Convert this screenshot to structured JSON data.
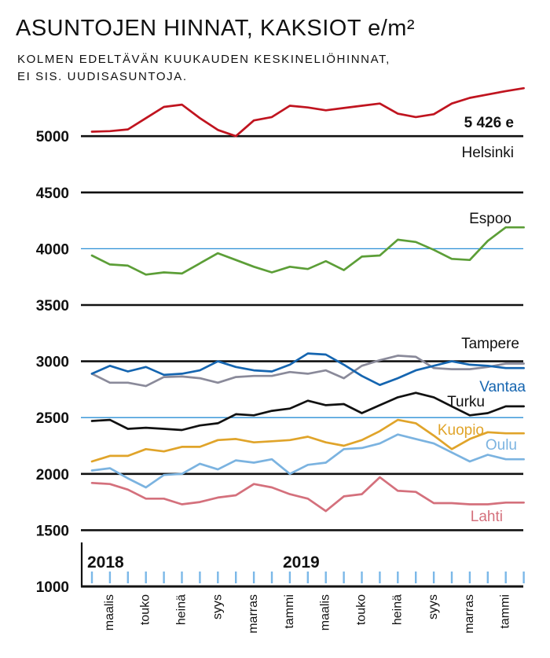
{
  "header": {
    "title": "ASUNTOJEN HINNAT, KAKSIOT e/m²",
    "subtitle_line1": "KOLMEN EDELTÄVÄN KUUKAUDEN KESKINELIÖHINNAT,",
    "subtitle_line2": "EI SIS. UUDISASUNTOJA."
  },
  "chart_data": {
    "type": "line",
    "title": "ASUNTOJEN HINNAT, KAKSIOT e/m²",
    "ylim": [
      1000,
      5500
    ],
    "yticks": [
      1000,
      1500,
      2000,
      2500,
      3000,
      3500,
      4000,
      4500,
      5000
    ],
    "ytick_labels": [
      "1000",
      "1500",
      "2000",
      "2500",
      "3000",
      "3500",
      "4000",
      "4500",
      "5000"
    ],
    "month_labels": [
      "maalis",
      "touko",
      "heinä",
      "syys",
      "marras",
      "tammi",
      "maalis",
      "touko",
      "heinä",
      "syys",
      "marras",
      "tammi"
    ],
    "year_labels": [
      "2018",
      "2019"
    ],
    "x": [
      "2018-01",
      "2018-02",
      "2018-03",
      "2018-04",
      "2018-05",
      "2018-06",
      "2018-07",
      "2018-08",
      "2018-09",
      "2018-10",
      "2018-11",
      "2018-12",
      "2019-01",
      "2019-02",
      "2019-03",
      "2019-04",
      "2019-05",
      "2019-06",
      "2019-07",
      "2019-08",
      "2019-09",
      "2019-10",
      "2019-11",
      "2019-12",
      "2020-01"
    ],
    "grid": "horizontal",
    "series": [
      {
        "name": "Helsinki",
        "color": "#c0141f",
        "annotation": "5 426 e",
        "values": [
          5040,
          5045,
          5060,
          5160,
          5260,
          5280,
          5160,
          5055,
          5000,
          5140,
          5170,
          5270,
          5255,
          5230,
          5250,
          5270,
          5290,
          5200,
          5170,
          5195,
          5290,
          5340,
          5370,
          5400,
          5426
        ]
      },
      {
        "name": "Espoo",
        "color": "#5c9e37",
        "values": [
          3940,
          3860,
          3850,
          3770,
          3790,
          3780,
          3870,
          3960,
          3900,
          3840,
          3790,
          3840,
          3820,
          3890,
          3810,
          3930,
          3940,
          4080,
          4060,
          3990,
          3910,
          3900,
          4070,
          4190,
          4190
        ]
      },
      {
        "name": "Tampere",
        "color": "#8a8a9a",
        "values": [
          2890,
          2810,
          2810,
          2780,
          2860,
          2865,
          2850,
          2810,
          2860,
          2870,
          2870,
          2905,
          2890,
          2920,
          2850,
          2960,
          3010,
          3050,
          3040,
          2940,
          2930,
          2930,
          2950,
          2980,
          2980
        ]
      },
      {
        "name": "Vantaa",
        "color": "#1565b0",
        "values": [
          2890,
          2960,
          2910,
          2950,
          2880,
          2890,
          2920,
          3000,
          2950,
          2920,
          2910,
          2970,
          3070,
          3060,
          2970,
          2870,
          2790,
          2850,
          2920,
          2960,
          3000,
          2970,
          2960,
          2940,
          2940
        ]
      },
      {
        "name": "Turku",
        "color": "#111111",
        "values": [
          2470,
          2480,
          2400,
          2410,
          2400,
          2390,
          2430,
          2450,
          2530,
          2520,
          2560,
          2580,
          2650,
          2610,
          2620,
          2540,
          2610,
          2680,
          2720,
          2680,
          2600,
          2520,
          2540,
          2600,
          2600
        ]
      },
      {
        "name": "Kuopio",
        "color": "#e0a42a",
        "values": [
          2110,
          2160,
          2160,
          2220,
          2200,
          2240,
          2240,
          2300,
          2310,
          2280,
          2290,
          2300,
          2330,
          2280,
          2250,
          2300,
          2380,
          2480,
          2450,
          2340,
          2220,
          2310,
          2370,
          2360,
          2360
        ]
      },
      {
        "name": "Oulu",
        "color": "#7bb3e0",
        "values": [
          2030,
          2050,
          1960,
          1880,
          1990,
          2000,
          2090,
          2040,
          2120,
          2100,
          2130,
          2000,
          2080,
          2100,
          2220,
          2230,
          2270,
          2350,
          2310,
          2270,
          2190,
          2110,
          2170,
          2130,
          2130
        ]
      },
      {
        "name": "Lahti",
        "color": "#d4707c",
        "values": [
          1920,
          1910,
          1860,
          1780,
          1780,
          1730,
          1750,
          1790,
          1810,
          1910,
          1880,
          1820,
          1780,
          1670,
          1800,
          1820,
          1970,
          1850,
          1840,
          1740,
          1740,
          1730,
          1730,
          1745,
          1745
        ]
      }
    ]
  }
}
